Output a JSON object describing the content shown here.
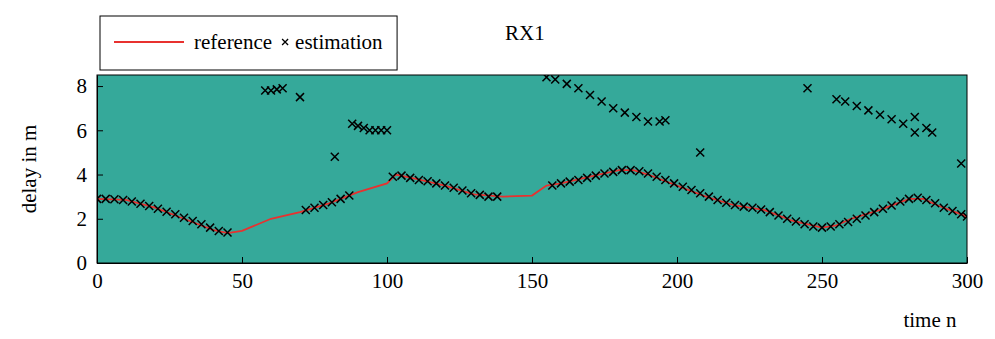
{
  "chart_data": {
    "type": "line",
    "title": "RX1",
    "x_label": "time n",
    "y_label": "delay in m",
    "xlim": [
      0,
      300
    ],
    "ylim": [
      0,
      8.5
    ],
    "xticks": [
      0,
      50,
      100,
      150,
      200,
      250,
      300
    ],
    "yticks": [
      0,
      2,
      4,
      6,
      8
    ],
    "legend": "top-left",
    "series": [
      {
        "name": "reference",
        "type": "line",
        "color": "#e8312f",
        "line_style": "solid",
        "x": [
          0,
          10,
          20,
          30,
          40,
          45,
          50,
          60,
          70,
          80,
          90,
          100,
          103,
          110,
          120,
          130,
          140,
          150,
          155,
          160,
          170,
          180,
          185,
          190,
          200,
          210,
          220,
          230,
          240,
          250,
          255,
          260,
          270,
          280,
          285,
          290,
          300
        ],
        "values": [
          2.9,
          2.85,
          2.5,
          2.0,
          1.5,
          1.35,
          1.45,
          2.0,
          2.3,
          2.7,
          3.2,
          3.6,
          4.0,
          3.8,
          3.5,
          3.1,
          3.0,
          3.05,
          3.5,
          3.6,
          3.9,
          4.2,
          4.2,
          4.0,
          3.5,
          3.0,
          2.6,
          2.4,
          1.9,
          1.6,
          1.7,
          2.0,
          2.4,
          2.9,
          2.9,
          2.6,
          2.1
        ]
      },
      {
        "name": "estimation",
        "type": "scatter",
        "marker": "x",
        "color": "#000000",
        "x": [
          0,
          3,
          6,
          9,
          12,
          15,
          18,
          21,
          24,
          27,
          30,
          33,
          36,
          39,
          42,
          45,
          72,
          75,
          78,
          81,
          84,
          87,
          102,
          105,
          108,
          111,
          114,
          117,
          120,
          123,
          126,
          129,
          132,
          135,
          138,
          157,
          160,
          163,
          166,
          169,
          172,
          175,
          178,
          181,
          184,
          187,
          190,
          193,
          196,
          199,
          202,
          205,
          208,
          211,
          214,
          217,
          220,
          223,
          226,
          229,
          232,
          235,
          238,
          241,
          244,
          247,
          250,
          253,
          256,
          259,
          262,
          265,
          268,
          271,
          274,
          277,
          280,
          283,
          286,
          289,
          292,
          295,
          298,
          300,
          58,
          60,
          62,
          64,
          70,
          82,
          88,
          90,
          92,
          94,
          96,
          98,
          100,
          155,
          158,
          162,
          166,
          170,
          174,
          178,
          182,
          186,
          190,
          194,
          196,
          208,
          245,
          255,
          258,
          262,
          266,
          270,
          274,
          278,
          282,
          282,
          286,
          288,
          298
        ],
        "values": [
          2.9,
          2.9,
          2.88,
          2.85,
          2.78,
          2.68,
          2.58,
          2.45,
          2.32,
          2.2,
          2.05,
          1.9,
          1.75,
          1.6,
          1.45,
          1.38,
          2.4,
          2.5,
          2.62,
          2.75,
          2.9,
          3.05,
          3.9,
          3.95,
          3.85,
          3.75,
          3.7,
          3.6,
          3.5,
          3.4,
          3.28,
          3.15,
          3.08,
          3.0,
          3.0,
          3.5,
          3.6,
          3.68,
          3.75,
          3.85,
          3.95,
          4.05,
          4.12,
          4.2,
          4.2,
          4.15,
          4.05,
          3.9,
          3.75,
          3.6,
          3.45,
          3.3,
          3.15,
          3.0,
          2.85,
          2.72,
          2.62,
          2.55,
          2.5,
          2.42,
          2.3,
          2.15,
          2.0,
          1.88,
          1.75,
          1.65,
          1.6,
          1.65,
          1.75,
          1.85,
          2.0,
          2.15,
          2.3,
          2.45,
          2.6,
          2.78,
          2.9,
          2.95,
          2.85,
          2.7,
          2.5,
          2.35,
          2.2,
          2.1,
          7.8,
          7.8,
          7.85,
          7.9,
          7.5,
          4.8,
          6.3,
          6.2,
          6.1,
          6.0,
          6.0,
          6.0,
          6.0,
          8.4,
          8.3,
          8.1,
          7.9,
          7.6,
          7.3,
          7.0,
          6.8,
          6.6,
          6.4,
          6.4,
          6.45,
          5.0,
          7.9,
          7.4,
          7.3,
          7.1,
          6.9,
          6.7,
          6.5,
          6.3,
          6.6,
          5.9,
          6.1,
          5.9,
          4.5
        ]
      }
    ]
  }
}
